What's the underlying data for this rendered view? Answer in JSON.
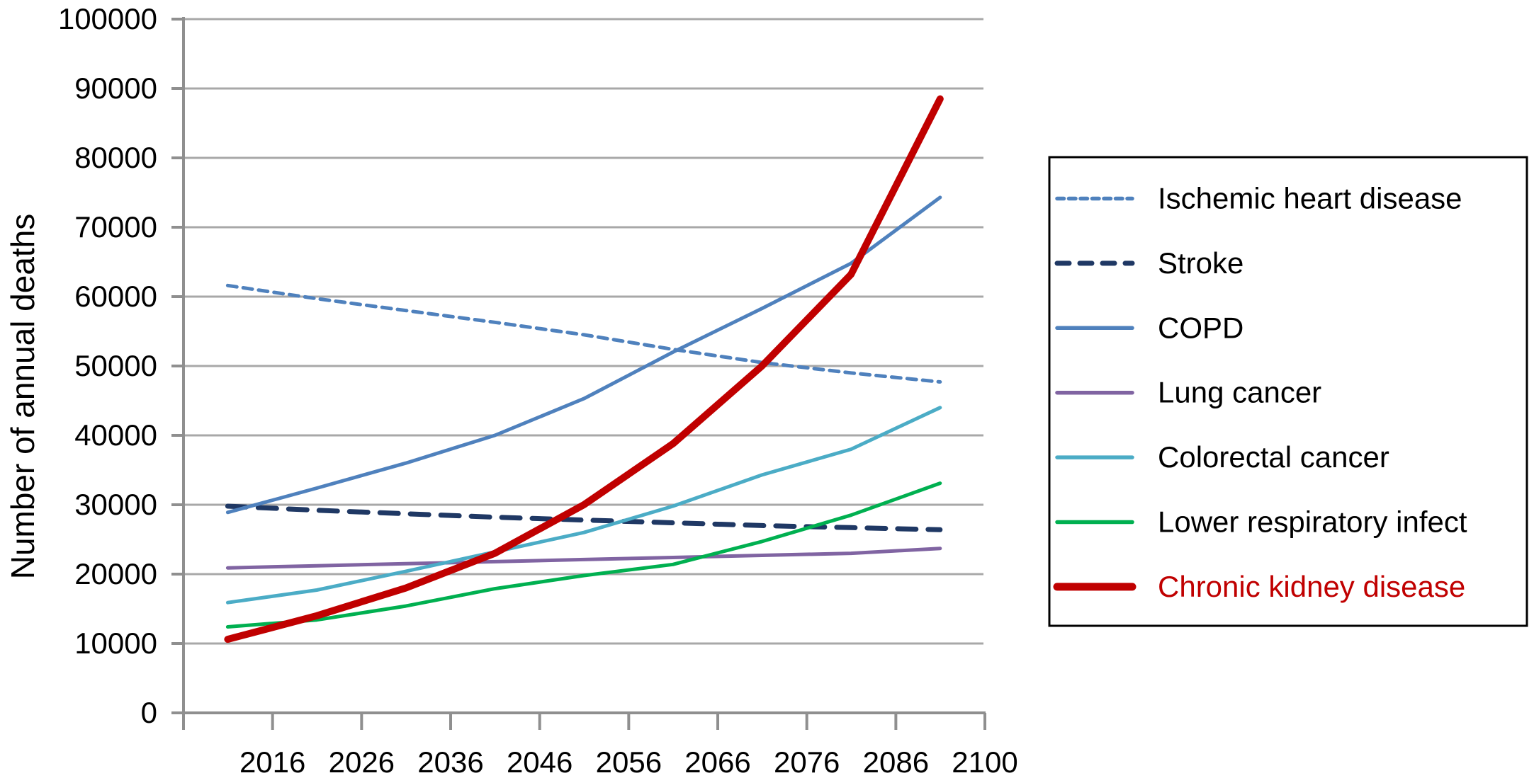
{
  "figure": {
    "background": "#ffffff",
    "gridline_color": "#a8a8a8",
    "axis_color": "#8f8f8f",
    "text_color": "#000000",
    "legend_border_color": "#000000"
  },
  "chart_data": {
    "type": "line",
    "title": "",
    "xlabel": "",
    "ylabel": "Number of annual deaths",
    "ylim": [
      0,
      100000
    ],
    "ytick_step": 10000,
    "grid": "horizontal",
    "legend_position": "right-outside-boxed",
    "y_tick_labels": [
      "0",
      "10000",
      "20000",
      "30000",
      "40000",
      "50000",
      "60000",
      "70000",
      "80000",
      "90000",
      "100000"
    ],
    "x_tick_labels": [
      "2016",
      "2026",
      "2036",
      "2046",
      "2056",
      "2066",
      "2076",
      "2086",
      "2100"
    ],
    "categories": [
      "2016",
      "2026",
      "2036",
      "2046",
      "2056",
      "2066",
      "2076",
      "2086",
      "2100"
    ],
    "series": [
      {
        "name": "Ischemic heart disease",
        "color": "#4F81BD",
        "line_style": "dashed-fine",
        "line_width": 5,
        "label_color": "#000000",
        "values": [
          61600,
          59700,
          58000,
          56300,
          54500,
          52400,
          50500,
          49000,
          47700
        ]
      },
      {
        "name": "Stroke",
        "color": "#1F3864",
        "line_style": "dashed",
        "line_width": 7,
        "label_color": "#000000",
        "values": [
          29800,
          29200,
          28700,
          28200,
          27800,
          27400,
          27000,
          26700,
          26400
        ]
      },
      {
        "name": "COPD",
        "color": "#4F81BD",
        "line_style": "solid",
        "line_width": 5,
        "label_color": "#000000",
        "values": [
          28900,
          32400,
          36000,
          40000,
          45300,
          52000,
          58300,
          64800,
          74300
        ]
      },
      {
        "name": "Lung cancer",
        "color": "#8064A2",
        "line_style": "solid",
        "line_width": 5,
        "label_color": "#000000",
        "values": [
          20900,
          21200,
          21500,
          21800,
          22100,
          22400,
          22700,
          23000,
          23700
        ]
      },
      {
        "name": "Colorectal cancer",
        "color": "#4BACC6",
        "line_style": "solid",
        "line_width": 5,
        "label_color": "#000000",
        "values": [
          15900,
          17700,
          20400,
          23200,
          26000,
          29800,
          34300,
          38000,
          44000
        ]
      },
      {
        "name": "Lower respiratory infect",
        "color": "#00B050",
        "line_style": "solid",
        "line_width": 5,
        "label_color": "#000000",
        "values": [
          12400,
          13400,
          15400,
          17900,
          19800,
          21400,
          24700,
          28500,
          33100
        ]
      },
      {
        "name": "Chronic kidney disease",
        "color": "#C00000",
        "line_style": "solid",
        "line_width": 10,
        "label_color": "#C00000",
        "values": [
          10600,
          14000,
          18000,
          23000,
          30000,
          38800,
          50000,
          63200,
          88500
        ]
      }
    ]
  }
}
